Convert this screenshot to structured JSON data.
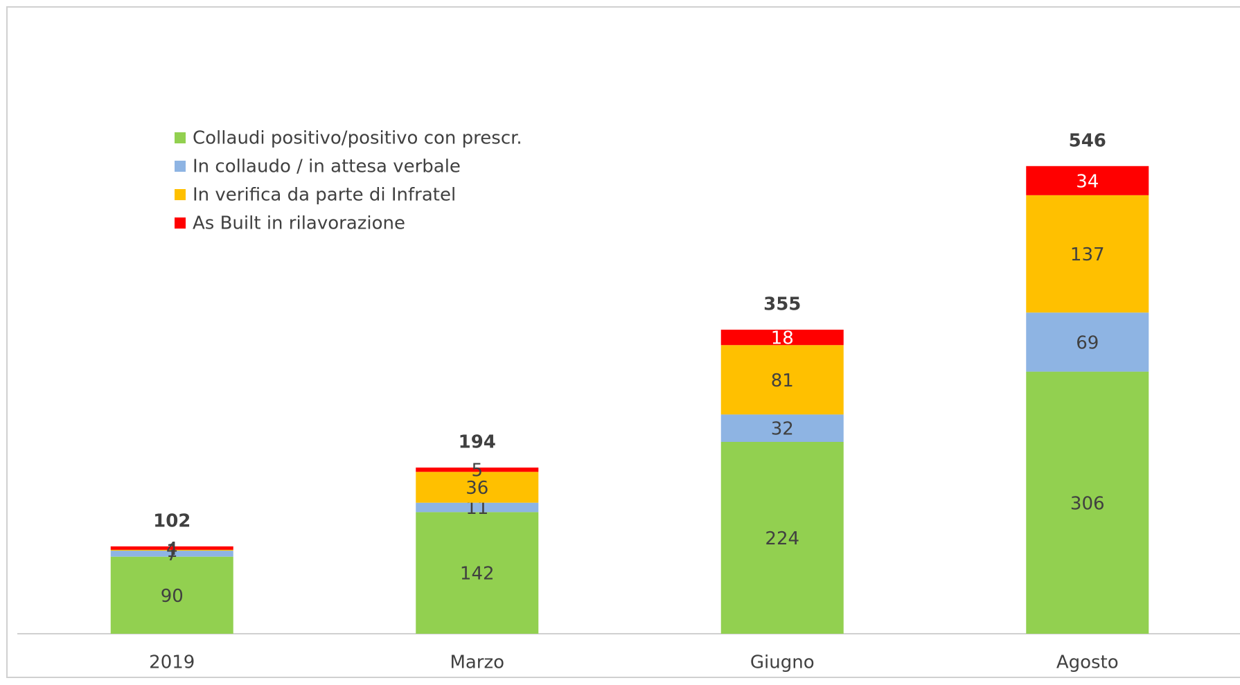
{
  "chart_data": {
    "type": "stacked_bar",
    "categories": [
      "2019",
      "Marzo",
      "Giugno",
      "Agosto"
    ],
    "series": [
      {
        "name": "Collaudi positivo/positivo con prescr.",
        "color": "#92d050",
        "values": [
          90,
          142,
          224,
          306
        ]
      },
      {
        "name": "In collaudo / in attesa verbale",
        "color": "#8eb4e3",
        "values": [
          7,
          11,
          32,
          69
        ]
      },
      {
        "name": "In verifica da parte di Infratel",
        "color": "#ffc000",
        "values": [
          1,
          36,
          81,
          137
        ]
      },
      {
        "name": "As Built in rilavorazione",
        "color": "#ff0000",
        "values": [
          4,
          5,
          18,
          34
        ]
      }
    ],
    "totals": [
      102,
      194,
      355,
      546
    ],
    "ylim": [
      0,
      600
    ],
    "legend": "top-left"
  }
}
